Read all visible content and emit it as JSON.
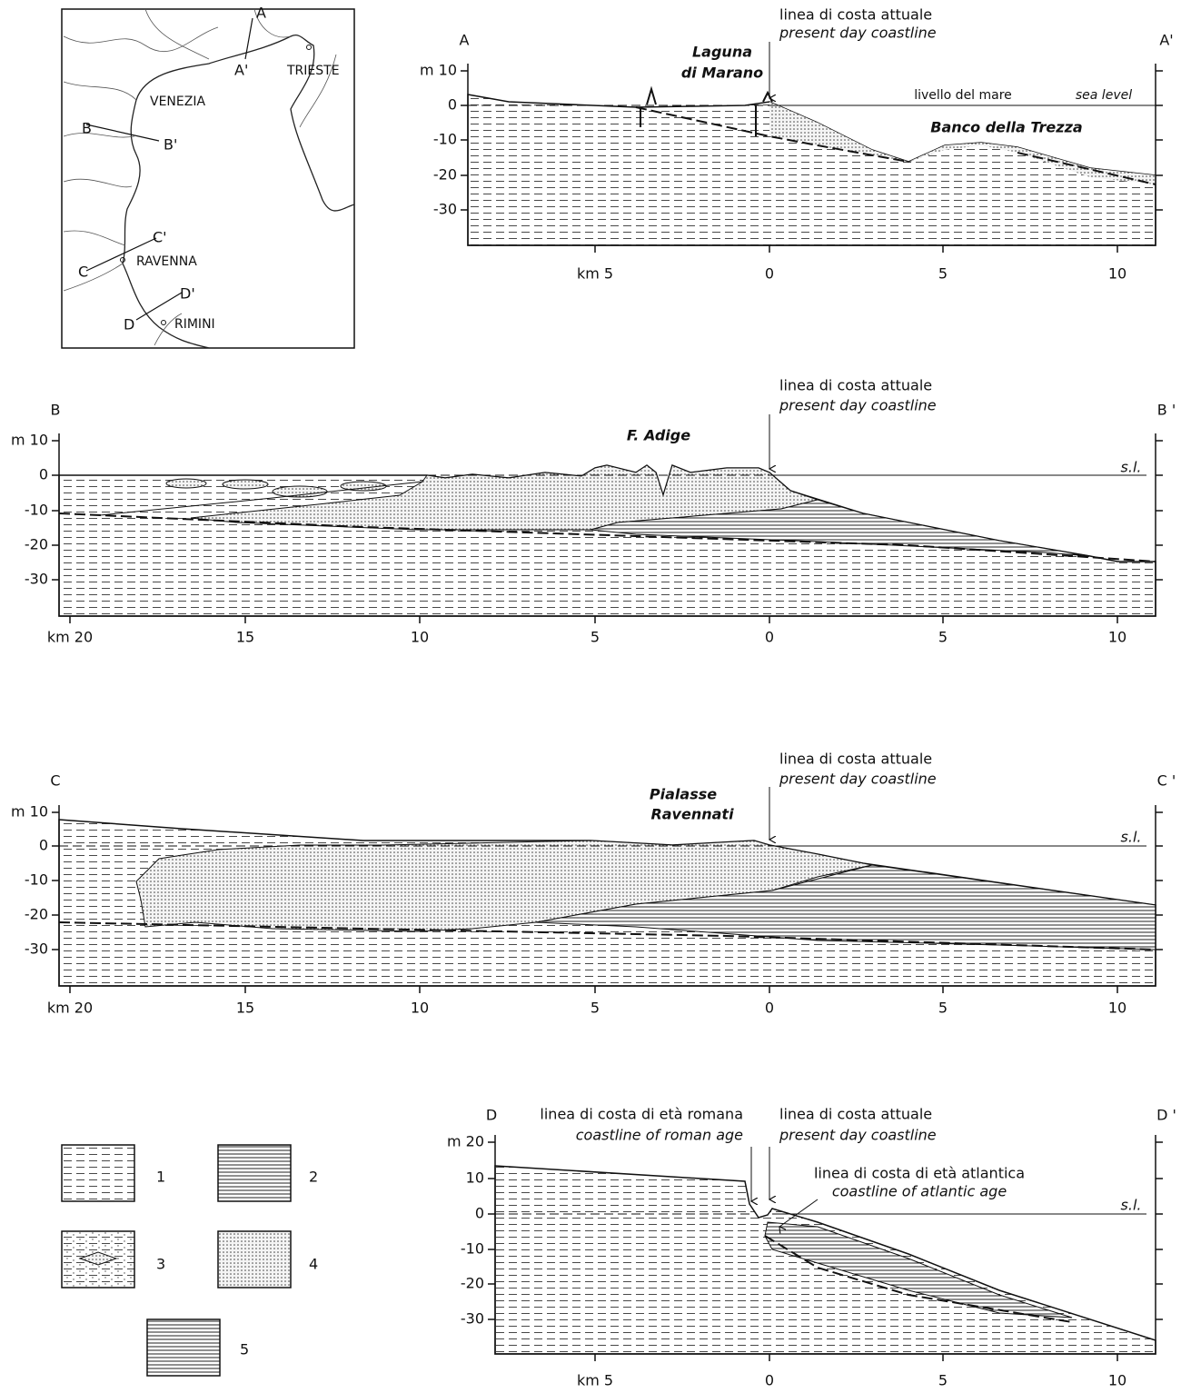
{
  "map": {
    "labels": {
      "a": "A",
      "a_prime": "A'",
      "trieste": "TRIESTE",
      "venezia": "VENEZIA",
      "b": "B",
      "b_prime": "B'",
      "c_prime": "C'",
      "c": "C",
      "ravenna": "RAVENNA",
      "d_prime": "D'",
      "d": "D",
      "rimini": "RIMINI"
    }
  },
  "sections": [
    {
      "start": "A",
      "end": "A'",
      "y_labels": [
        "m 10",
        "0",
        "-10",
        "-20",
        "-30"
      ],
      "x_labels": [
        "km 5",
        "0",
        "5",
        "10"
      ],
      "coastline": [
        "linea di costa attuale",
        "present day coastline"
      ],
      "places": [
        "Laguna",
        "di  Marano",
        "Banco  della  Trezza"
      ],
      "sea_level": [
        "livello  del  mare",
        "sea  level"
      ]
    },
    {
      "start": "B",
      "end": "B '",
      "y_labels": [
        "m 10",
        "0",
        "-10",
        "-20",
        "-30"
      ],
      "x_labels": [
        "km 20",
        "15",
        "10",
        "5",
        "0",
        "5",
        "10"
      ],
      "coastline": [
        "linea di costa attuale",
        "present day coastline"
      ],
      "places": [
        "F.  Adige"
      ],
      "sea_level": [
        "s.l."
      ]
    },
    {
      "start": "C",
      "end": "C '",
      "y_labels": [
        "m 10",
        "0",
        "-10",
        "-20",
        "-30"
      ],
      "x_labels": [
        "km 20",
        "15",
        "10",
        "5",
        "0",
        "5",
        "10"
      ],
      "coastline": [
        "linea di costa attuale",
        "present day coastline"
      ],
      "places": [
        "Pialasse",
        "Ravennati"
      ],
      "sea_level": [
        "s.l."
      ]
    },
    {
      "start": "D",
      "end": "D '",
      "y_labels": [
        "m 20",
        "10",
        "0",
        "-10",
        "-20",
        "-30"
      ],
      "x_labels": [
        "km 5",
        "0",
        "5",
        "10"
      ],
      "coastline": [
        "linea di costa attuale",
        "present day coastline"
      ],
      "roman_coastline": [
        "linea di costa di età romana",
        "coastline of roman age"
      ],
      "atlantic_coastline": [
        "linea di costa di età atlantica",
        "coastline of atlantic age"
      ],
      "sea_level": [
        "s.l."
      ]
    }
  ],
  "legend": [
    "1",
    "2",
    "3",
    "4",
    "5"
  ]
}
